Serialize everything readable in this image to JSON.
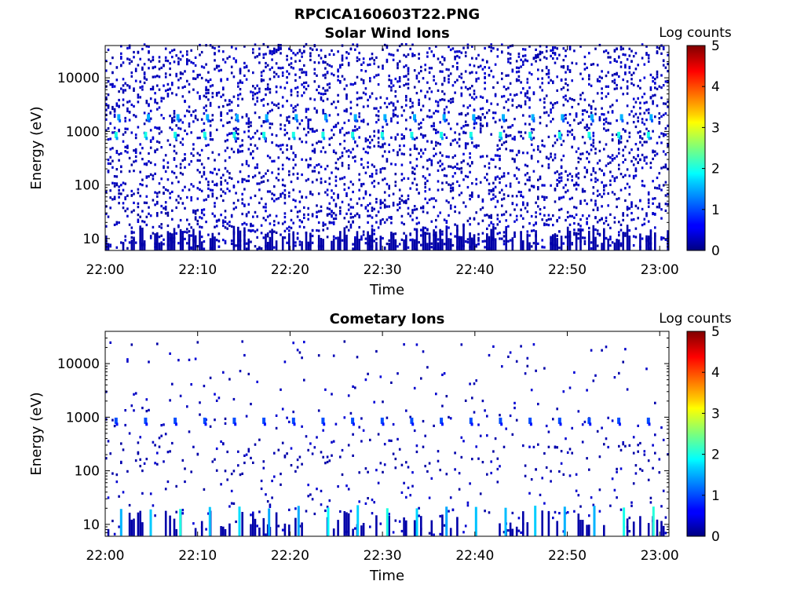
{
  "figure": {
    "title": "RPCICA160603T22.PNG"
  },
  "chart_data": [
    {
      "type": "heatmap",
      "title": "Solar Wind Ions",
      "xlabel": "Time",
      "ylabel": "Energy (eV)",
      "yscale": "log",
      "ylim": [
        6,
        40000
      ],
      "xlim_minutes": [
        0,
        61
      ],
      "x_ticks": [
        {
          "label": "22:00",
          "minutes": 0
        },
        {
          "label": "22:10",
          "minutes": 10
        },
        {
          "label": "22:20",
          "minutes": 20
        },
        {
          "label": "22:30",
          "minutes": 30
        },
        {
          "label": "22:40",
          "minutes": 40
        },
        {
          "label": "22:50",
          "minutes": 50
        },
        {
          "label": "23:00",
          "minutes": 60
        }
      ],
      "y_ticks": [
        {
          "label": "10",
          "value": 10
        },
        {
          "label": "100",
          "value": 100
        },
        {
          "label": "1000",
          "value": 1000
        },
        {
          "label": "10000",
          "value": 10000
        }
      ],
      "colorbar": {
        "label": "Log counts",
        "min": 0,
        "max": 5,
        "ticks": [
          "0",
          "1",
          "2",
          "3",
          "4",
          "5"
        ]
      },
      "background_density": "high",
      "features": [
        {
          "name": "solar-wind-peak",
          "energy_ev": 750,
          "log_counts": 2.0,
          "period_min": 3.2,
          "first_min": 1.0
        },
        {
          "name": "solar-wind-secondary",
          "energy_ev": 1600,
          "log_counts": 1.5,
          "period_min": 3.2,
          "first_min": 1.3
        }
      ]
    },
    {
      "type": "heatmap",
      "title": "Cometary Ions",
      "xlabel": "Time",
      "ylabel": "Energy (eV)",
      "yscale": "log",
      "ylim": [
        6,
        40000
      ],
      "xlim_minutes": [
        0,
        61
      ],
      "x_ticks": [
        {
          "label": "22:00",
          "minutes": 0
        },
        {
          "label": "22:10",
          "minutes": 10
        },
        {
          "label": "22:20",
          "minutes": 20
        },
        {
          "label": "22:30",
          "minutes": 30
        },
        {
          "label": "22:40",
          "minutes": 40
        },
        {
          "label": "22:50",
          "minutes": 50
        },
        {
          "label": "23:00",
          "minutes": 60
        }
      ],
      "y_ticks": [
        {
          "label": "10",
          "value": 10
        },
        {
          "label": "100",
          "value": 100
        },
        {
          "label": "1000",
          "value": 1000
        },
        {
          "label": "10000",
          "value": 10000
        }
      ],
      "colorbar": {
        "label": "Log counts",
        "min": 0,
        "max": 5,
        "ticks": [
          "0",
          "1",
          "2",
          "3",
          "4",
          "5"
        ]
      },
      "background_density": "low",
      "features": [
        {
          "name": "solar-wind-leak",
          "energy_ev": 750,
          "log_counts": 1.0,
          "period_min": 3.2,
          "first_min": 1.0
        },
        {
          "name": "low-energy-cometary",
          "energy_ev": 12,
          "log_counts": 1.8,
          "period_min": 3.2,
          "first_min": 1.6
        }
      ]
    }
  ]
}
